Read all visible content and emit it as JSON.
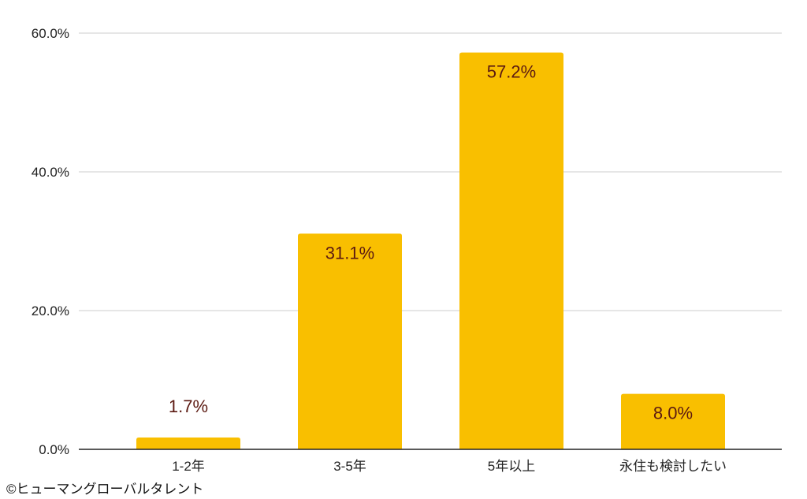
{
  "chart_data": {
    "type": "bar",
    "categories": [
      "1-2年",
      "3-5年",
      "5年以上",
      "永住も検討したい"
    ],
    "values": [
      1.7,
      31.1,
      57.2,
      8.0
    ],
    "data_labels": [
      "1.7%",
      "31.1%",
      "57.2%",
      "8.0%"
    ],
    "title": "",
    "xlabel": "",
    "ylabel": "",
    "ylim": [
      0,
      60
    ],
    "yticks": [
      0,
      20,
      40,
      60
    ],
    "ytick_labels": [
      "0.0%",
      "20.0%",
      "40.0%",
      "60.0%"
    ],
    "grid": true,
    "legend": "none",
    "colors": {
      "bar": "#f9bf00",
      "data_label": "#5c1a12",
      "grid": "#cccccc",
      "axis": "#222222"
    }
  },
  "footer": {
    "copyright": "©ヒューマングローバルタレント"
  }
}
